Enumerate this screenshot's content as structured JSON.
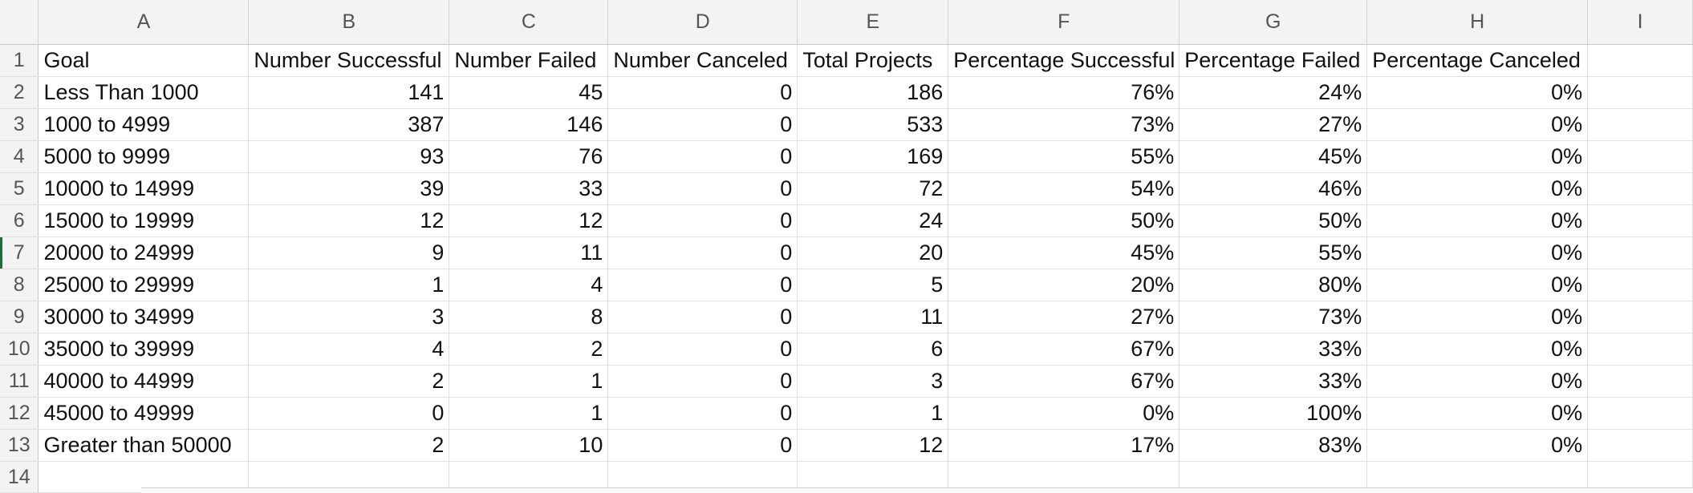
{
  "columns": [
    "A",
    "B",
    "C",
    "D",
    "E",
    "F",
    "G",
    "H",
    "I"
  ],
  "row_numbers": [
    "1",
    "2",
    "3",
    "4",
    "5",
    "6",
    "7",
    "8",
    "9",
    "10",
    "11",
    "12",
    "13",
    "14"
  ],
  "headers": [
    "Goal",
    "Number Successful",
    "Number Failed",
    "Number Canceled",
    "Total Projects",
    "Percentage Successful",
    "Percentage Failed",
    "Percentage Canceled"
  ],
  "rows": [
    [
      "Less Than 1000",
      "141",
      "45",
      "0",
      "186",
      "76%",
      "24%",
      "0%"
    ],
    [
      "1000 to 4999",
      "387",
      "146",
      "0",
      "533",
      "73%",
      "27%",
      "0%"
    ],
    [
      "5000 to 9999",
      "93",
      "76",
      "0",
      "169",
      "55%",
      "45%",
      "0%"
    ],
    [
      "10000 to 14999",
      "39",
      "33",
      "0",
      "72",
      "54%",
      "46%",
      "0%"
    ],
    [
      "15000 to 19999",
      "12",
      "12",
      "0",
      "24",
      "50%",
      "50%",
      "0%"
    ],
    [
      "20000 to 24999",
      "9",
      "11",
      "0",
      "20",
      "45%",
      "55%",
      "0%"
    ],
    [
      "25000 to 29999",
      "1",
      "4",
      "0",
      "5",
      "20%",
      "80%",
      "0%"
    ],
    [
      "30000 to 34999",
      "3",
      "8",
      "0",
      "11",
      "27%",
      "73%",
      "0%"
    ],
    [
      "35000 to 39999",
      "4",
      "2",
      "0",
      "6",
      "67%",
      "33%",
      "0%"
    ],
    [
      "40000 to 44999",
      "2",
      "1",
      "0",
      "3",
      "67%",
      "33%",
      "0%"
    ],
    [
      "45000 to 49999",
      "0",
      "1",
      "0",
      "1",
      "0%",
      "100%",
      "0%"
    ],
    [
      "Greater than 50000",
      "2",
      "10",
      "0",
      "12",
      "17%",
      "83%",
      "0%"
    ]
  ]
}
